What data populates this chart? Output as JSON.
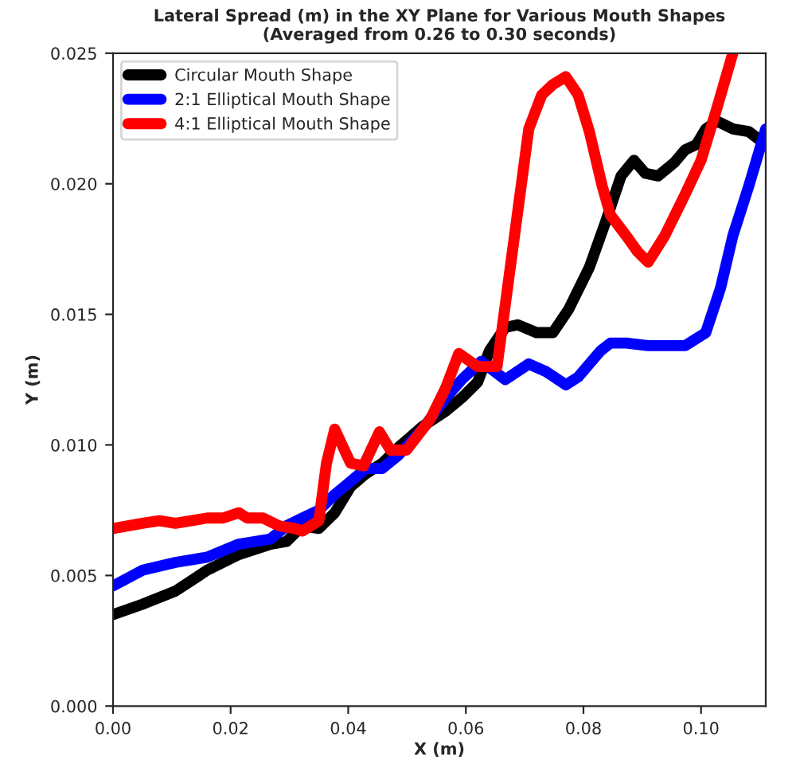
{
  "chart_data": {
    "type": "line",
    "title": "Lateral Spread (m) in the XY Plane for Various Mouth Shapes\n(Averaged from 0.26 to 0.30 seconds)",
    "xlabel": "X (m)",
    "ylabel": "Y (m)",
    "xlim": [
      0,
      0.111
    ],
    "ylim": [
      0,
      0.025
    ],
    "xticks": [
      {
        "value": 0,
        "label": "0.00"
      },
      {
        "value": 0.02,
        "label": "0.02"
      },
      {
        "value": 0.04,
        "label": "0.04"
      },
      {
        "value": 0.06,
        "label": "0.06"
      },
      {
        "value": 0.08,
        "label": "0.08"
      },
      {
        "value": 0.1,
        "label": "0.10"
      }
    ],
    "yticks": [
      {
        "value": 0,
        "label": "0.000"
      },
      {
        "value": 0.005,
        "label": "0.005"
      },
      {
        "value": 0.01,
        "label": "0.010"
      },
      {
        "value": 0.015,
        "label": "0.015"
      },
      {
        "value": 0.02,
        "label": "0.020"
      },
      {
        "value": 0.025,
        "label": "0.025"
      }
    ],
    "grid": false,
    "legend": "top left",
    "line_style": "solid",
    "marker": "none",
    "series": [
      {
        "name": "Circular Mouth Shape",
        "color": "#000000",
        "x": [
          0,
          0.005,
          0.0106,
          0.016,
          0.0214,
          0.0268,
          0.0295,
          0.0322,
          0.035,
          0.0377,
          0.0404,
          0.043,
          0.0458,
          0.0485,
          0.0526,
          0.0566,
          0.0593,
          0.062,
          0.064,
          0.0667,
          0.0688,
          0.072,
          0.0748,
          0.0775,
          0.081,
          0.0837,
          0.0864,
          0.0886,
          0.0905,
          0.0927,
          0.0954,
          0.0973,
          0.0992,
          0.1008,
          0.1027,
          0.1054,
          0.1081,
          0.111
        ],
        "values": [
          0.0035,
          0.0039,
          0.0044,
          0.0052,
          0.0058,
          0.0062,
          0.0063,
          0.0069,
          0.0068,
          0.0074,
          0.0084,
          0.0089,
          0.0093,
          0.0099,
          0.0107,
          0.0113,
          0.0118,
          0.0124,
          0.0136,
          0.0145,
          0.0146,
          0.0143,
          0.0143,
          0.0152,
          0.0168,
          0.0185,
          0.0203,
          0.0209,
          0.0204,
          0.0203,
          0.0208,
          0.0213,
          0.0215,
          0.0221,
          0.0224,
          0.0221,
          0.022,
          0.0215
        ]
      },
      {
        "name": "2:1 Elliptical Mouth Shape",
        "color": "#0000ff",
        "x": [
          0,
          0.005,
          0.0106,
          0.016,
          0.0214,
          0.0268,
          0.0295,
          0.0322,
          0.035,
          0.0377,
          0.0404,
          0.043,
          0.0458,
          0.0485,
          0.0526,
          0.0566,
          0.0593,
          0.0626,
          0.0667,
          0.0707,
          0.0737,
          0.077,
          0.0791,
          0.0829,
          0.0846,
          0.0873,
          0.091,
          0.0938,
          0.0973,
          0.1008,
          0.1033,
          0.1054,
          0.1081,
          0.111
        ],
        "values": [
          0.0046,
          0.0052,
          0.0055,
          0.0057,
          0.0062,
          0.0064,
          0.0069,
          0.0072,
          0.0075,
          0.0081,
          0.0086,
          0.0091,
          0.0091,
          0.0096,
          0.0106,
          0.0118,
          0.0125,
          0.0132,
          0.0125,
          0.0131,
          0.0128,
          0.0123,
          0.0126,
          0.0136,
          0.0139,
          0.0139,
          0.0138,
          0.0138,
          0.0138,
          0.0143,
          0.016,
          0.018,
          0.0199,
          0.0221
        ]
      },
      {
        "name": "4:1 Elliptical Mouth Shape",
        "color": "#ff0000",
        "x": [
          0,
          0.005,
          0.0079,
          0.0106,
          0.0133,
          0.016,
          0.0187,
          0.0214,
          0.0228,
          0.0255,
          0.0282,
          0.0309,
          0.0322,
          0.035,
          0.0363,
          0.0377,
          0.0404,
          0.0426,
          0.0453,
          0.0472,
          0.0499,
          0.054,
          0.0566,
          0.0588,
          0.062,
          0.0653,
          0.0707,
          0.0729,
          0.0748,
          0.077,
          0.0791,
          0.081,
          0.0832,
          0.0846,
          0.0873,
          0.0892,
          0.091,
          0.0938,
          0.0973,
          0.1,
          0.1027,
          0.1054
        ],
        "values": [
          0.0068,
          0.007,
          0.0071,
          0.007,
          0.0071,
          0.0072,
          0.0072,
          0.0074,
          0.0072,
          0.0072,
          0.0069,
          0.0068,
          0.0067,
          0.0071,
          0.0093,
          0.0106,
          0.0093,
          0.0092,
          0.0105,
          0.0098,
          0.0098,
          0.011,
          0.0122,
          0.0135,
          0.013,
          0.013,
          0.0221,
          0.0234,
          0.0238,
          0.0241,
          0.0234,
          0.022,
          0.0199,
          0.0188,
          0.018,
          0.0174,
          0.017,
          0.018,
          0.0196,
          0.0209,
          0.0229,
          0.025
        ]
      }
    ]
  }
}
